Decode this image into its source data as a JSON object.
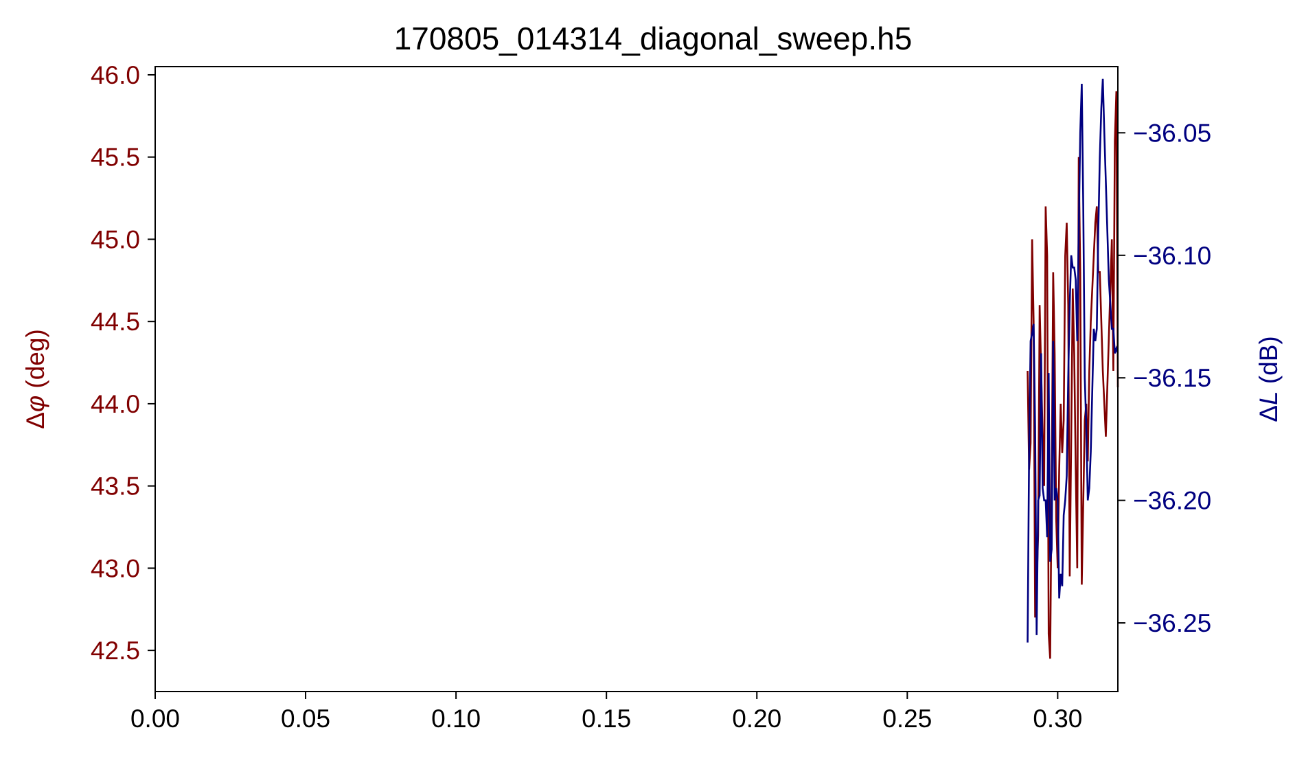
{
  "chart_data": {
    "type": "line",
    "title": "170805_014314_diagonal_sweep.h5",
    "x_axis": {
      "ticks": [
        0.0,
        0.05,
        0.1,
        0.15,
        0.2,
        0.25,
        0.3
      ],
      "tick_labels": [
        "0.00",
        "0.05",
        "0.10",
        "0.15",
        "0.20",
        "0.25",
        "0.30"
      ],
      "xlim": [
        0.0,
        0.32
      ]
    },
    "y_axis_left": {
      "label_prefix": "Δ",
      "label_symbol": "φ",
      "label_unit": " (deg)",
      "ticks": [
        42.5,
        43.0,
        43.5,
        44.0,
        44.5,
        45.0,
        45.5,
        46.0
      ],
      "tick_labels": [
        "42.5",
        "43.0",
        "43.5",
        "44.0",
        "44.5",
        "45.0",
        "45.5",
        "46.0"
      ],
      "ylim": [
        42.25,
        46.05
      ],
      "color": "#800000"
    },
    "y_axis_right": {
      "label_prefix": "Δ",
      "label_symbol": "L",
      "label_unit": " (dB)",
      "ticks": [
        -36.25,
        -36.2,
        -36.15,
        -36.1,
        -36.05
      ],
      "tick_labels": [
        "−36.25",
        "−36.20",
        "−36.15",
        "−36.10",
        "−36.05"
      ],
      "ylim": [
        -36.278,
        -36.023
      ],
      "color": "#000080"
    },
    "grid": false,
    "series": [
      {
        "axis": "left",
        "color": "#800000",
        "x": [
          0.29,
          0.2905,
          0.291,
          0.2915,
          0.292,
          0.2925,
          0.293,
          0.2935,
          0.294,
          0.2945,
          0.295,
          0.2955,
          0.296,
          0.2965,
          0.297,
          0.2975,
          0.298,
          0.2985,
          0.299,
          0.2995,
          0.3,
          0.3005,
          0.301,
          0.3015,
          0.302,
          0.3025,
          0.303,
          0.3035,
          0.304,
          0.3045,
          0.305,
          0.3055,
          0.306,
          0.3065,
          0.307,
          0.3075,
          0.308,
          0.3085,
          0.309,
          0.3095,
          0.31,
          0.3105,
          0.311,
          0.3115,
          0.312,
          0.3125,
          0.313,
          0.3135,
          0.314,
          0.3145,
          0.315,
          0.3155,
          0.316,
          0.3165,
          0.317,
          0.3175,
          0.318,
          0.3185,
          0.319,
          0.3195,
          0.32
        ],
        "y": [
          44.2,
          43.6,
          43.76,
          45.0,
          44.5,
          42.7,
          42.9,
          43.2,
          44.6,
          44.2,
          43.8,
          43.5,
          45.2,
          44.9,
          42.6,
          42.45,
          43.5,
          44.8,
          44.3,
          43.3,
          43.0,
          43.6,
          44.0,
          43.7,
          43.9,
          44.9,
          45.1,
          44.6,
          42.95,
          43.8,
          44.7,
          44.3,
          43.6,
          43.0,
          45.5,
          44.8,
          42.9,
          43.4,
          43.9,
          44.0,
          43.65,
          44.2,
          44.5,
          44.7,
          44.9,
          45.1,
          45.2,
          44.8,
          44.8,
          44.5,
          44.2,
          44.0,
          43.8,
          44.1,
          44.4,
          44.7,
          45.0,
          44.2,
          45.6,
          45.9,
          44.1
        ]
      },
      {
        "axis": "right",
        "color": "#000080",
        "x": [
          0.29,
          0.2905,
          0.291,
          0.2915,
          0.292,
          0.2925,
          0.293,
          0.2935,
          0.294,
          0.2945,
          0.295,
          0.2955,
          0.296,
          0.2965,
          0.297,
          0.2975,
          0.298,
          0.2985,
          0.299,
          0.2995,
          0.3,
          0.3005,
          0.301,
          0.3015,
          0.302,
          0.3025,
          0.303,
          0.3035,
          0.304,
          0.3045,
          0.305,
          0.3055,
          0.306,
          0.3065,
          0.307,
          0.3075,
          0.308,
          0.3085,
          0.309,
          0.3095,
          0.31,
          0.3105,
          0.311,
          0.3115,
          0.312,
          0.3125,
          0.313,
          0.3135,
          0.314,
          0.3145,
          0.315,
          0.3155,
          0.316,
          0.3165,
          0.317,
          0.3175,
          0.318,
          0.3185,
          0.319,
          0.3195,
          0.32
        ],
        "y": [
          -36.258,
          -36.18,
          -36.135,
          -36.132,
          -36.128,
          -36.17,
          -36.255,
          -36.2,
          -36.198,
          -36.14,
          -36.195,
          -36.2,
          -36.2,
          -36.215,
          -36.148,
          -36.225,
          -36.22,
          -36.135,
          -36.2,
          -36.195,
          -36.2,
          -36.24,
          -36.23,
          -36.235,
          -36.206,
          -36.2,
          -36.19,
          -36.15,
          -36.12,
          -36.1,
          -36.105,
          -36.105,
          -36.11,
          -36.135,
          -36.09,
          -36.05,
          -36.03,
          -36.08,
          -36.15,
          -36.17,
          -36.2,
          -36.195,
          -36.18,
          -36.155,
          -36.13,
          -36.135,
          -36.13,
          -36.09,
          -36.06,
          -36.04,
          -36.028,
          -36.05,
          -36.07,
          -36.09,
          -36.11,
          -36.12,
          -36.13,
          -36.13,
          -36.14,
          -36.138,
          -36.14
        ]
      }
    ]
  }
}
